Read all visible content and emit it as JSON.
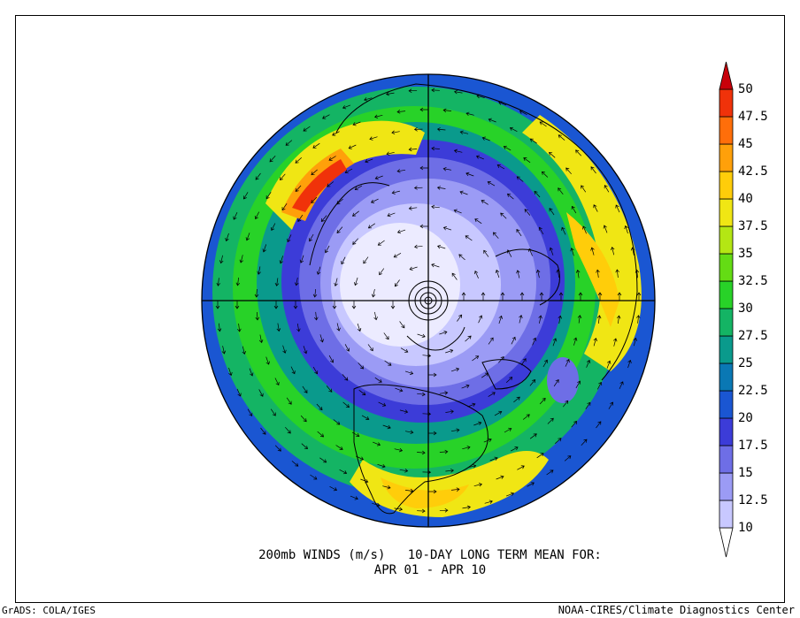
{
  "map": {
    "title_line1": "200mb WINDS (m/s)   10-DAY LONG TERM MEAN FOR:",
    "title_line2": "APR 01 - APR 10",
    "credit_left": "GrADS: COLA/IGES",
    "credit_right": "NOAA-CIRES/Climate Diagnostics Center",
    "projection": "north-polar-stereographic",
    "vectors": "arrows",
    "jet_maxima": [
      "Northwest Pacific (near Japan)",
      "Southern US / Atlantic band"
    ]
  },
  "colorbar": {
    "unit": "m/s",
    "ticks": [
      "10",
      "12.5",
      "15",
      "17.5",
      "20",
      "22.5",
      "25",
      "27.5",
      "30",
      "32.5",
      "35",
      "37.5",
      "40",
      "42.5",
      "45",
      "47.5",
      "50"
    ],
    "colors": [
      "#ffffff",
      "#c8c8ff",
      "#9b9bf5",
      "#6e6ee6",
      "#3c3cd8",
      "#1a56d2",
      "#0a78b4",
      "#0a9a8c",
      "#14b464",
      "#28d228",
      "#64dc14",
      "#b4e614",
      "#f0e614",
      "#ffcd0a",
      "#ffa00a",
      "#ff6e0a",
      "#f0320a",
      "#c8000a"
    ]
  }
}
